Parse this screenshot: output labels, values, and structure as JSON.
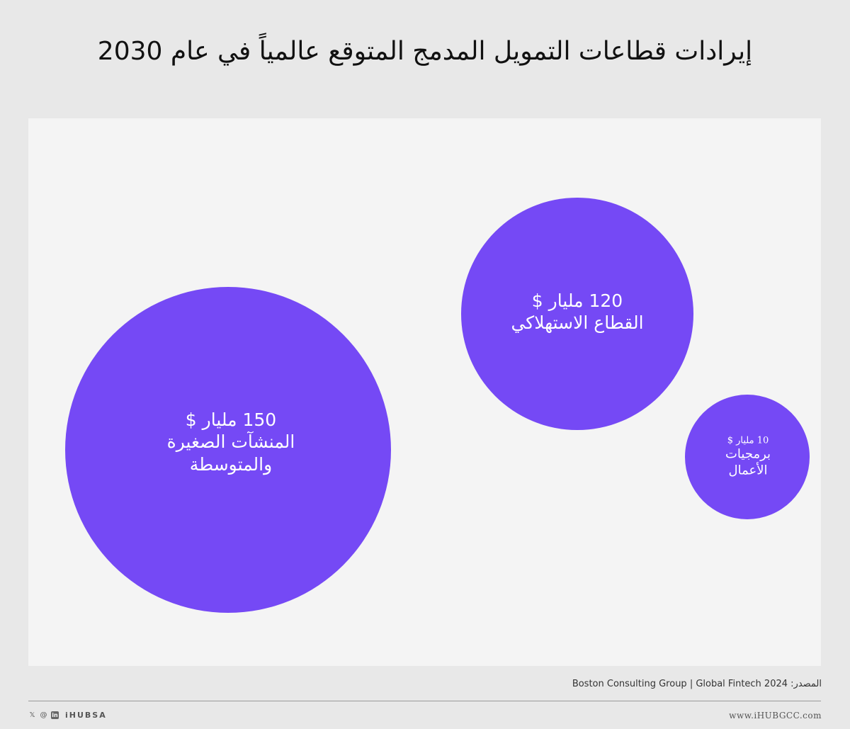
{
  "title": "إيرادات قطاعات التمويل المدمج المتوقع عالمياً في عام 2030",
  "chart_data": {
    "type": "bubble",
    "unit": "مليار $",
    "bubbles": [
      {
        "value": 150,
        "value_label": "150  مليار $",
        "label": "المنشآت الصغيرة\nوالمتوسطة"
      },
      {
        "value": 120,
        "value_label": "120 مليار $",
        "label": "القطاع الاستهلاكي"
      },
      {
        "value": 10,
        "value_label": "10 مليار $",
        "label": "برمجيات\nالأعمال"
      }
    ],
    "colors": {
      "bubble": "#7549f5",
      "plot_bg": "#f4f4f4",
      "page_bg": "#e8e8e8"
    }
  },
  "source": {
    "label": "المصدر:",
    "text": "Boston Consulting Group | Global Fintech 2024"
  },
  "footer": {
    "icons": [
      "x-icon",
      "threads-icon",
      "linkedin-icon"
    ],
    "brand": "iHUBSA",
    "website": "www.iHUBGCC.com"
  }
}
